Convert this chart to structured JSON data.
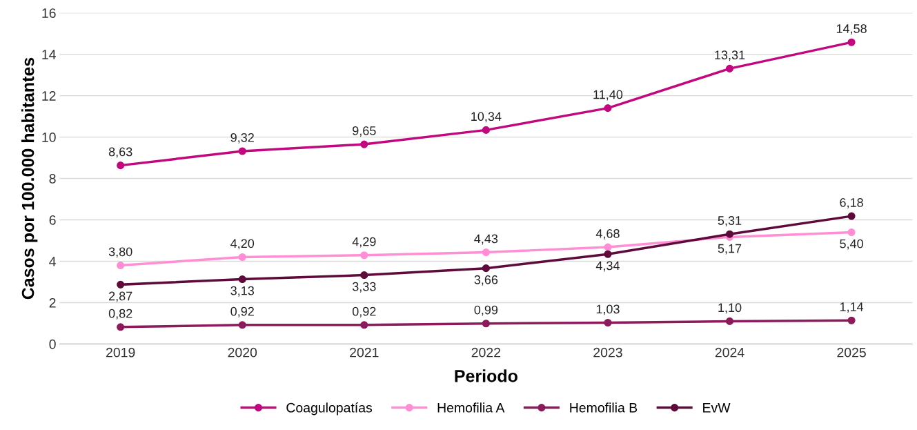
{
  "chart_data": {
    "type": "line",
    "xlabel": "Periodo",
    "ylabel": "Casos por 100.000 habitantes",
    "categories": [
      "2019",
      "2020",
      "2021",
      "2022",
      "2023",
      "2024",
      "2025"
    ],
    "series": [
      {
        "name": "Coagulopatías",
        "color": "#c1087f",
        "values": [
          8.63,
          9.32,
          9.65,
          10.34,
          11.4,
          13.31,
          14.58
        ],
        "value_labels": [
          "8,63",
          "9,32",
          "9,65",
          "10,34",
          "11,40",
          "13,31",
          "14,58"
        ]
      },
      {
        "name": "Hemofilia A",
        "color": "#ff8ed5",
        "values": [
          3.8,
          4.2,
          4.29,
          4.43,
          4.68,
          5.17,
          5.4
        ],
        "value_labels": [
          "3,80",
          "4,20",
          "4,29",
          "4,43",
          "4,68",
          "5,17",
          "5,40"
        ]
      },
      {
        "name": "Hemofilia B",
        "color": "#8c1b5b",
        "values": [
          0.82,
          0.92,
          0.92,
          0.99,
          1.03,
          1.1,
          1.14
        ],
        "value_labels": [
          "0,82",
          "0,92",
          "0,92",
          "0,99",
          "1,03",
          "1,10",
          "1,14"
        ]
      },
      {
        "name": "EvW",
        "color": "#5e0a3a",
        "values": [
          2.87,
          3.13,
          3.33,
          3.66,
          4.34,
          5.31,
          6.18
        ],
        "value_labels": [
          "2,87",
          "3,13",
          "3,33",
          "3,66",
          "4,34",
          "5,31",
          "6,18"
        ]
      }
    ],
    "ylim": [
      0,
      16
    ],
    "yticks": [
      0,
      2,
      4,
      6,
      8,
      10,
      12,
      14,
      16
    ],
    "grid": "y",
    "legend": "bottom",
    "marker": "circle",
    "line_style": "solid"
  }
}
